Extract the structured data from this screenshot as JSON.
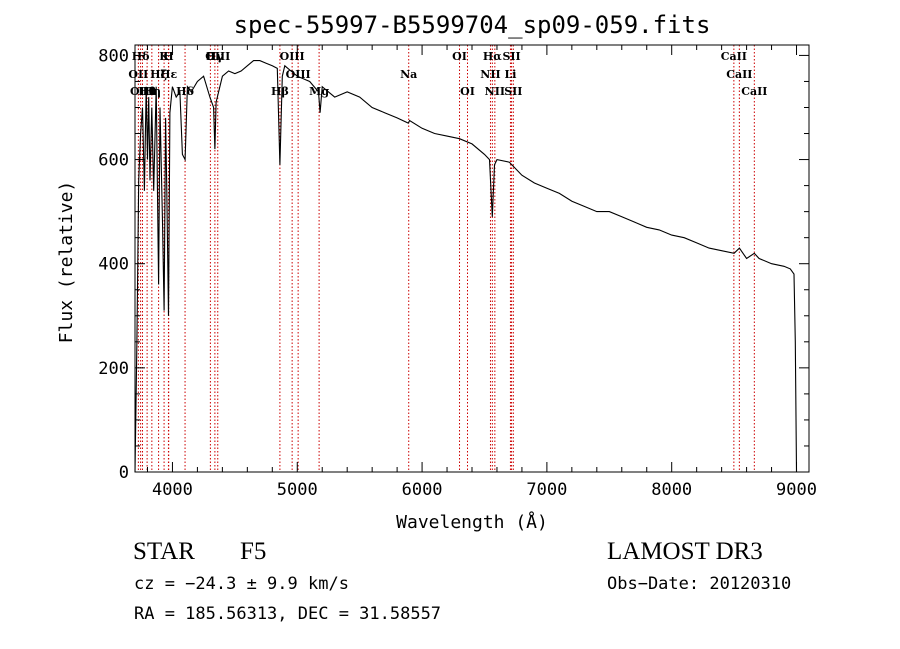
{
  "chart_data": {
    "type": "line",
    "title": "spec-55997-B5599704_sp09-059.fits",
    "xlabel": "Wavelength (Å)",
    "ylabel": "Flux (relative)",
    "xlim": [
      3700,
      9100
    ],
    "ylim": [
      0,
      820
    ],
    "xticks": [
      4000,
      5000,
      6000,
      7000,
      8000,
      9000
    ],
    "yticks": [
      0,
      200,
      400,
      600,
      800
    ],
    "line_color": "#000000",
    "marker_color": "#cc0000",
    "series": [
      {
        "name": "spectrum",
        "x": [
          3700,
          3715,
          3730,
          3745,
          3760,
          3775,
          3790,
          3800,
          3810,
          3820,
          3835,
          3850,
          3870,
          3889,
          3900,
          3920,
          3933,
          3945,
          3955,
          3968,
          3980,
          4000,
          4030,
          4060,
          4080,
          4101,
          4120,
          4150,
          4200,
          4250,
          4300,
          4330,
          4340,
          4350,
          4400,
          4450,
          4500,
          4550,
          4600,
          4650,
          4700,
          4750,
          4800,
          4840,
          4861,
          4880,
          4900,
          4950,
          5000,
          5100,
          5170,
          5183,
          5200,
          5300,
          5400,
          5500,
          5600,
          5700,
          5800,
          5890,
          5900,
          6000,
          6100,
          6200,
          6300,
          6400,
          6500,
          6540,
          6563,
          6580,
          6600,
          6700,
          6800,
          6900,
          7000,
          7100,
          7200,
          7300,
          7400,
          7500,
          7600,
          7700,
          7800,
          7900,
          8000,
          8100,
          8200,
          8300,
          8400,
          8500,
          8542,
          8600,
          8662,
          8700,
          8800,
          8900,
          8950,
          8980,
          8990,
          9000
        ],
        "y": [
          0,
          250,
          560,
          650,
          700,
          540,
          740,
          600,
          720,
          560,
          700,
          540,
          740,
          360,
          700,
          480,
          310,
          680,
          540,
          300,
          690,
          740,
          720,
          730,
          610,
          600,
          740,
          730,
          750,
          760,
          720,
          700,
          620,
          710,
          760,
          770,
          765,
          770,
          780,
          790,
          790,
          785,
          780,
          775,
          590,
          760,
          780,
          770,
          760,
          750,
          730,
          690,
          740,
          720,
          730,
          720,
          700,
          690,
          680,
          670,
          675,
          660,
          650,
          645,
          640,
          630,
          610,
          600,
          490,
          590,
          600,
          595,
          570,
          555,
          545,
          535,
          520,
          510,
          500,
          500,
          490,
          480,
          470,
          465,
          455,
          450,
          440,
          430,
          425,
          420,
          430,
          410,
          420,
          410,
          400,
          395,
          390,
          380,
          250,
          0
        ]
      }
    ],
    "line_markers": [
      {
        "label": "Hδ",
        "wavelength": 3745,
        "row": 1
      },
      {
        "label": "OII",
        "wavelength": 3727,
        "row": 2
      },
      {
        "label": "OIII",
        "wavelength": 3760,
        "row": 3
      },
      {
        "label": "K",
        "wavelength": 3933,
        "row": 1
      },
      {
        "label": "H",
        "wavelength": 3968,
        "row": 1
      },
      {
        "label": "Hε",
        "wavelength": 3970,
        "row": 2
      },
      {
        "label": "Hζ",
        "wavelength": 3889,
        "row": 2
      },
      {
        "label": "Hη",
        "wavelength": 3835,
        "row": 3
      },
      {
        "label": "Hθ",
        "wavelength": 3797,
        "row": 3
      },
      {
        "label": "Hδ",
        "wavelength": 4101,
        "row": 3
      },
      {
        "label": "G",
        "wavelength": 4304,
        "row": 1
      },
      {
        "label": "Hγ",
        "wavelength": 4340,
        "row": 1
      },
      {
        "label": "OIII",
        "wavelength": 4363,
        "row": 1
      },
      {
        "label": "Hβ",
        "wavelength": 4861,
        "row": 3
      },
      {
        "label": "OIII",
        "wavelength": 4959,
        "row": 1
      },
      {
        "label": "OIII",
        "wavelength": 5007,
        "row": 2
      },
      {
        "label": "Mg",
        "wavelength": 5175,
        "row": 3
      },
      {
        "label": "Na",
        "wavelength": 5893,
        "row": 2
      },
      {
        "label": "OI",
        "wavelength": 6300,
        "row": 1
      },
      {
        "label": "OI",
        "wavelength": 6364,
        "row": 3
      },
      {
        "label": "NII",
        "wavelength": 6548,
        "row": 2
      },
      {
        "label": "Hα",
        "wavelength": 6563,
        "row": 1
      },
      {
        "label": "NII",
        "wavelength": 6583,
        "row": 3
      },
      {
        "label": "Li",
        "wavelength": 6708,
        "row": 2
      },
      {
        "label": "SII",
        "wavelength": 6717,
        "row": 1
      },
      {
        "label": "SII",
        "wavelength": 6731,
        "row": 3
      },
      {
        "label": "CaII",
        "wavelength": 8498,
        "row": 1
      },
      {
        "label": "CaII",
        "wavelength": 8542,
        "row": 2
      },
      {
        "label": "CaII",
        "wavelength": 8662,
        "row": 3
      }
    ]
  },
  "info": {
    "object_class": "STAR",
    "subclass": "F5",
    "survey": "LAMOST DR3",
    "cz": "cz = −24.3 ± 9.9 km/s",
    "obs_date": "Obs−Date: 20120310",
    "coords": "RA = 185.56313, DEC =  31.58557"
  }
}
